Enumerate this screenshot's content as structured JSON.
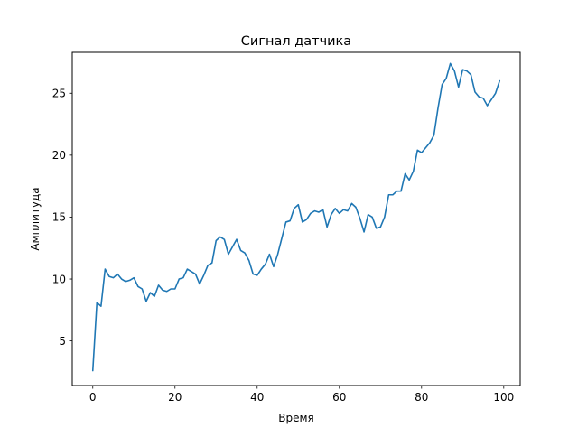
{
  "chart_data": {
    "type": "line",
    "title": "Сигнал датчика",
    "xlabel": "Время",
    "ylabel": "Амплитуда",
    "xlim": [
      -5,
      104
    ],
    "ylim": [
      1.4,
      28.3
    ],
    "xticks": [
      0,
      20,
      40,
      60,
      80,
      100
    ],
    "yticks": [
      5,
      10,
      15,
      20,
      25
    ],
    "grid": false,
    "legend": "none",
    "colors": {
      "line": "#1f77b4",
      "axes": "#000000",
      "background": "#ffffff"
    },
    "series": [
      {
        "x": [
          0,
          1,
          2,
          3,
          4,
          5,
          6,
          7,
          8,
          9,
          10,
          11,
          12,
          13,
          14,
          15,
          16,
          17,
          18,
          19,
          20,
          21,
          22,
          23,
          24,
          25,
          26,
          27,
          28,
          29,
          30,
          31,
          32,
          33,
          34,
          35,
          36,
          37,
          38,
          39,
          40,
          41,
          42,
          43,
          44,
          45,
          46,
          47,
          48,
          49,
          50,
          51,
          52,
          53,
          54,
          55,
          56,
          57,
          58,
          59,
          60,
          61,
          62,
          63,
          64,
          65,
          66,
          67,
          68,
          69,
          70,
          71,
          72,
          73,
          74,
          75,
          76,
          77,
          78,
          79,
          80,
          81,
          82,
          83,
          84,
          85,
          86,
          87,
          88,
          89,
          90,
          91,
          92,
          93,
          94,
          95,
          96,
          97,
          98,
          99
        ],
        "values": [
          2.6,
          8.1,
          7.8,
          10.8,
          10.2,
          10.1,
          10.4,
          10.0,
          9.8,
          9.9,
          10.1,
          9.4,
          9.2,
          8.2,
          8.9,
          8.6,
          9.5,
          9.1,
          9.0,
          9.2,
          9.2,
          10.0,
          10.1,
          10.8,
          10.6,
          10.4,
          9.6,
          10.3,
          11.1,
          11.3,
          13.1,
          13.4,
          13.2,
          12.0,
          12.6,
          13.2,
          12.3,
          12.1,
          11.5,
          10.4,
          10.3,
          10.8,
          11.2,
          12.0,
          11.0,
          12.0,
          13.3,
          14.6,
          14.7,
          15.7,
          16.0,
          14.6,
          14.8,
          15.3,
          15.5,
          15.4,
          15.6,
          14.2,
          15.2,
          15.7,
          15.3,
          15.6,
          15.5,
          16.1,
          15.8,
          14.9,
          13.8,
          15.2,
          15.0,
          14.1,
          14.2,
          15.0,
          16.8,
          16.8,
          17.1,
          17.1,
          18.5,
          18.0,
          18.7,
          20.4,
          20.2,
          20.6,
          21.0,
          21.6,
          23.8,
          25.7,
          26.2,
          27.4,
          26.8,
          25.5,
          26.9,
          26.8,
          26.5,
          25.1,
          24.7,
          24.6,
          24.0,
          24.5,
          25.0,
          26.0
        ]
      }
    ]
  }
}
